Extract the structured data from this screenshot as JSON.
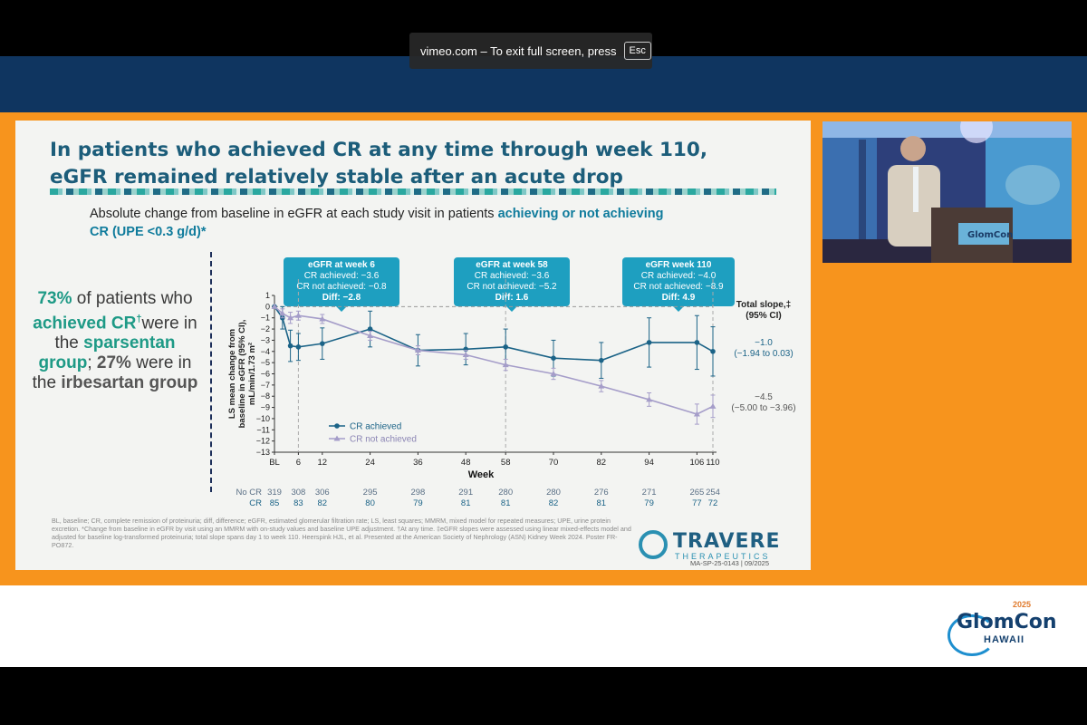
{
  "browser": {
    "fullscreen_notice": "vimeo.com – To exit full screen, press",
    "esc_key": "Esc"
  },
  "slide": {
    "title_line1": "In patients who achieved CR at any time through week 110,",
    "title_line2": "eGFR remained relatively stable after an acute drop",
    "subtitle_plain": "Absolute change from baseline in eGFR at each study visit in patients ",
    "subtitle_bold": "achieving or not achieving",
    "subtitle_line2": "CR (UPE <0.3 g/d)*",
    "left_stat": {
      "pct1": "73%",
      "t1": " of patients who ",
      "achieved": "achieved CR",
      "dagger": "†",
      "t2": "were in the ",
      "drug1": "sparsentan group",
      "t3": "; ",
      "pct2": "27%",
      "t4": " were in the ",
      "drug2": "irbesartan group"
    },
    "callouts": [
      {
        "head": "eGFR at week 6",
        "l1": "CR achieved: −3.6",
        "l2": "CR not achieved: −0.8",
        "diff": "Diff: −2.8"
      },
      {
        "head": "eGFR at week 58",
        "l1": "CR achieved: −3.6",
        "l2": "CR not achieved: −5.2",
        "diff": "Diff: 1.6"
      },
      {
        "head": "eGFR week 110",
        "l1": "CR achieved: −4.0",
        "l2": "CR not achieved: −8.9",
        "diff": "Diff: 4.9"
      }
    ],
    "footnote": "BL, baseline; CR, complete remission of proteinuria; diff, difference; eGFR, estimated glomerular filtration rate; LS, least squares; MMRM, mixed model for repeated measures; UPE, urine protein excretion. *Change from baseline in eGFR by visit using an MMRM with on-study values and baseline UPE adjustment. †At any time. ‡eGFR slopes were assessed using linear mixed-effects model and adjusted for baseline log-transformed proteinuria; total slope spans day 1 to week 110. Heerspink HJL, et al. Presented at the American Society of Nephrology (ASN) Kidney Week 2024. Poster FR-PO872.",
    "logo_name": "TRAVERE",
    "logo_sub": "THERAPEUTICS",
    "slide_code": "MA-SP-25-0143 | 09/2025"
  },
  "conference": {
    "logo_name": "GlomCon",
    "logo_location": "HAWAII",
    "logo_year": "2025"
  },
  "chart_data": {
    "type": "line",
    "ylabel": "LS mean change from baseline in eGFR (95% CI), mL/min/1.73 m²",
    "xlabel": "Week",
    "ylim": [
      -13,
      1
    ],
    "yticks": [
      "1",
      "0",
      "−1",
      "−2",
      "−3",
      "−4",
      "−5",
      "−6",
      "−7",
      "−8",
      "−9",
      "−10",
      "−11",
      "−12",
      "−13"
    ],
    "x_labels": [
      "BL",
      "6",
      "12",
      "24",
      "36",
      "48",
      "58",
      "70",
      "82",
      "94",
      "106",
      "110"
    ],
    "x_values": [
      0,
      6,
      12,
      24,
      36,
      48,
      58,
      70,
      82,
      94,
      106,
      110
    ],
    "dashed_verticals": [
      6,
      58,
      110
    ],
    "series": [
      {
        "name": "CR achieved",
        "color": "#1b6387",
        "marker": "circle",
        "x": [
          0,
          2,
          4,
          6,
          12,
          24,
          36,
          48,
          58,
          70,
          82,
          94,
          106,
          110
        ],
        "y": [
          0,
          -1.0,
          -3.5,
          -3.6,
          -3.3,
          -2.0,
          -3.9,
          -3.8,
          -3.6,
          -4.6,
          -4.8,
          -3.2,
          -3.2,
          -4.0
        ],
        "err": [
          0,
          1.0,
          1.4,
          1.2,
          1.4,
          1.6,
          1.4,
          1.4,
          1.6,
          1.6,
          1.6,
          2.2,
          2.4,
          2.2
        ]
      },
      {
        "name": "CR not achieved",
        "color": "#a59dc9",
        "marker": "triangle",
        "x": [
          0,
          2,
          4,
          6,
          12,
          24,
          36,
          48,
          58,
          70,
          82,
          94,
          106,
          110
        ],
        "y": [
          0,
          -0.6,
          -1.0,
          -0.8,
          -1.1,
          -2.6,
          -3.9,
          -4.3,
          -5.2,
          -6.0,
          -7.1,
          -8.3,
          -9.6,
          -8.9
        ],
        "err": [
          0,
          0.4,
          0.5,
          0.4,
          0.4,
          0.4,
          0.4,
          0.4,
          0.5,
          0.5,
          0.5,
          0.6,
          0.9,
          1.0
        ]
      }
    ],
    "legend": [
      "CR achieved",
      "CR not achieved"
    ],
    "total_slope_title": "Total slope,‡ (95% CI)",
    "slope_achieved": "−1.0",
    "slope_achieved_ci": "(−1.94 to 0.03)",
    "slope_not_achieved": "−4.5",
    "slope_not_achieved_ci": "(−5.00 to −3.96)",
    "n_at_risk": {
      "labels": [
        "No CR",
        "CR"
      ],
      "no_cr": [
        "319",
        "308",
        "306",
        "295",
        "298",
        "291",
        "280",
        "280",
        "276",
        "271",
        "265",
        "254"
      ],
      "cr": [
        "85",
        "83",
        "82",
        "80",
        "79",
        "81",
        "81",
        "82",
        "81",
        "79",
        "77",
        "72"
      ]
    }
  }
}
